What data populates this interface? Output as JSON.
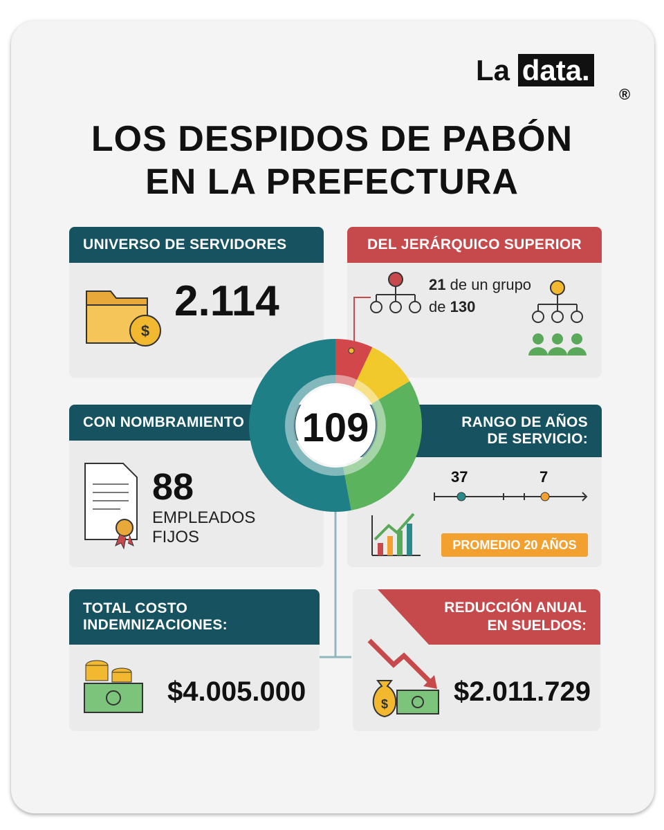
{
  "logo": {
    "left": "La",
    "right": "data.",
    "mark": "®"
  },
  "title": {
    "line1": "LOS DESPIDOS DE PABÓN",
    "line2": "EN LA PREFECTURA"
  },
  "center": {
    "value": "109"
  },
  "cards": {
    "universo": {
      "header": "UNIVERSO DE SERVIDORES",
      "value": "2.114"
    },
    "jerarquico": {
      "header": "DEL JERÁRQUICO SUPERIOR",
      "count": "21",
      "text1": "de un grupo",
      "text2": "de",
      "total": "130"
    },
    "nombramiento": {
      "header": "CON NOMBRAMIENTO",
      "value": "88",
      "label": "EMPLEADOS\nFIJOS"
    },
    "rango": {
      "header": "RANGO DE AÑOS\nDE SERVICIO:",
      "max": "37",
      "min": "7",
      "average": "PROMEDIO 20 AÑOS"
    },
    "costo": {
      "header": "TOTAL COSTO\nINDEMNIZACIONES:",
      "value": "$4.005.000"
    },
    "reduccion": {
      "header": "REDUCCIÓN ANUAL\nEN SUELDOS:",
      "value": "$2.011.729"
    }
  }
}
